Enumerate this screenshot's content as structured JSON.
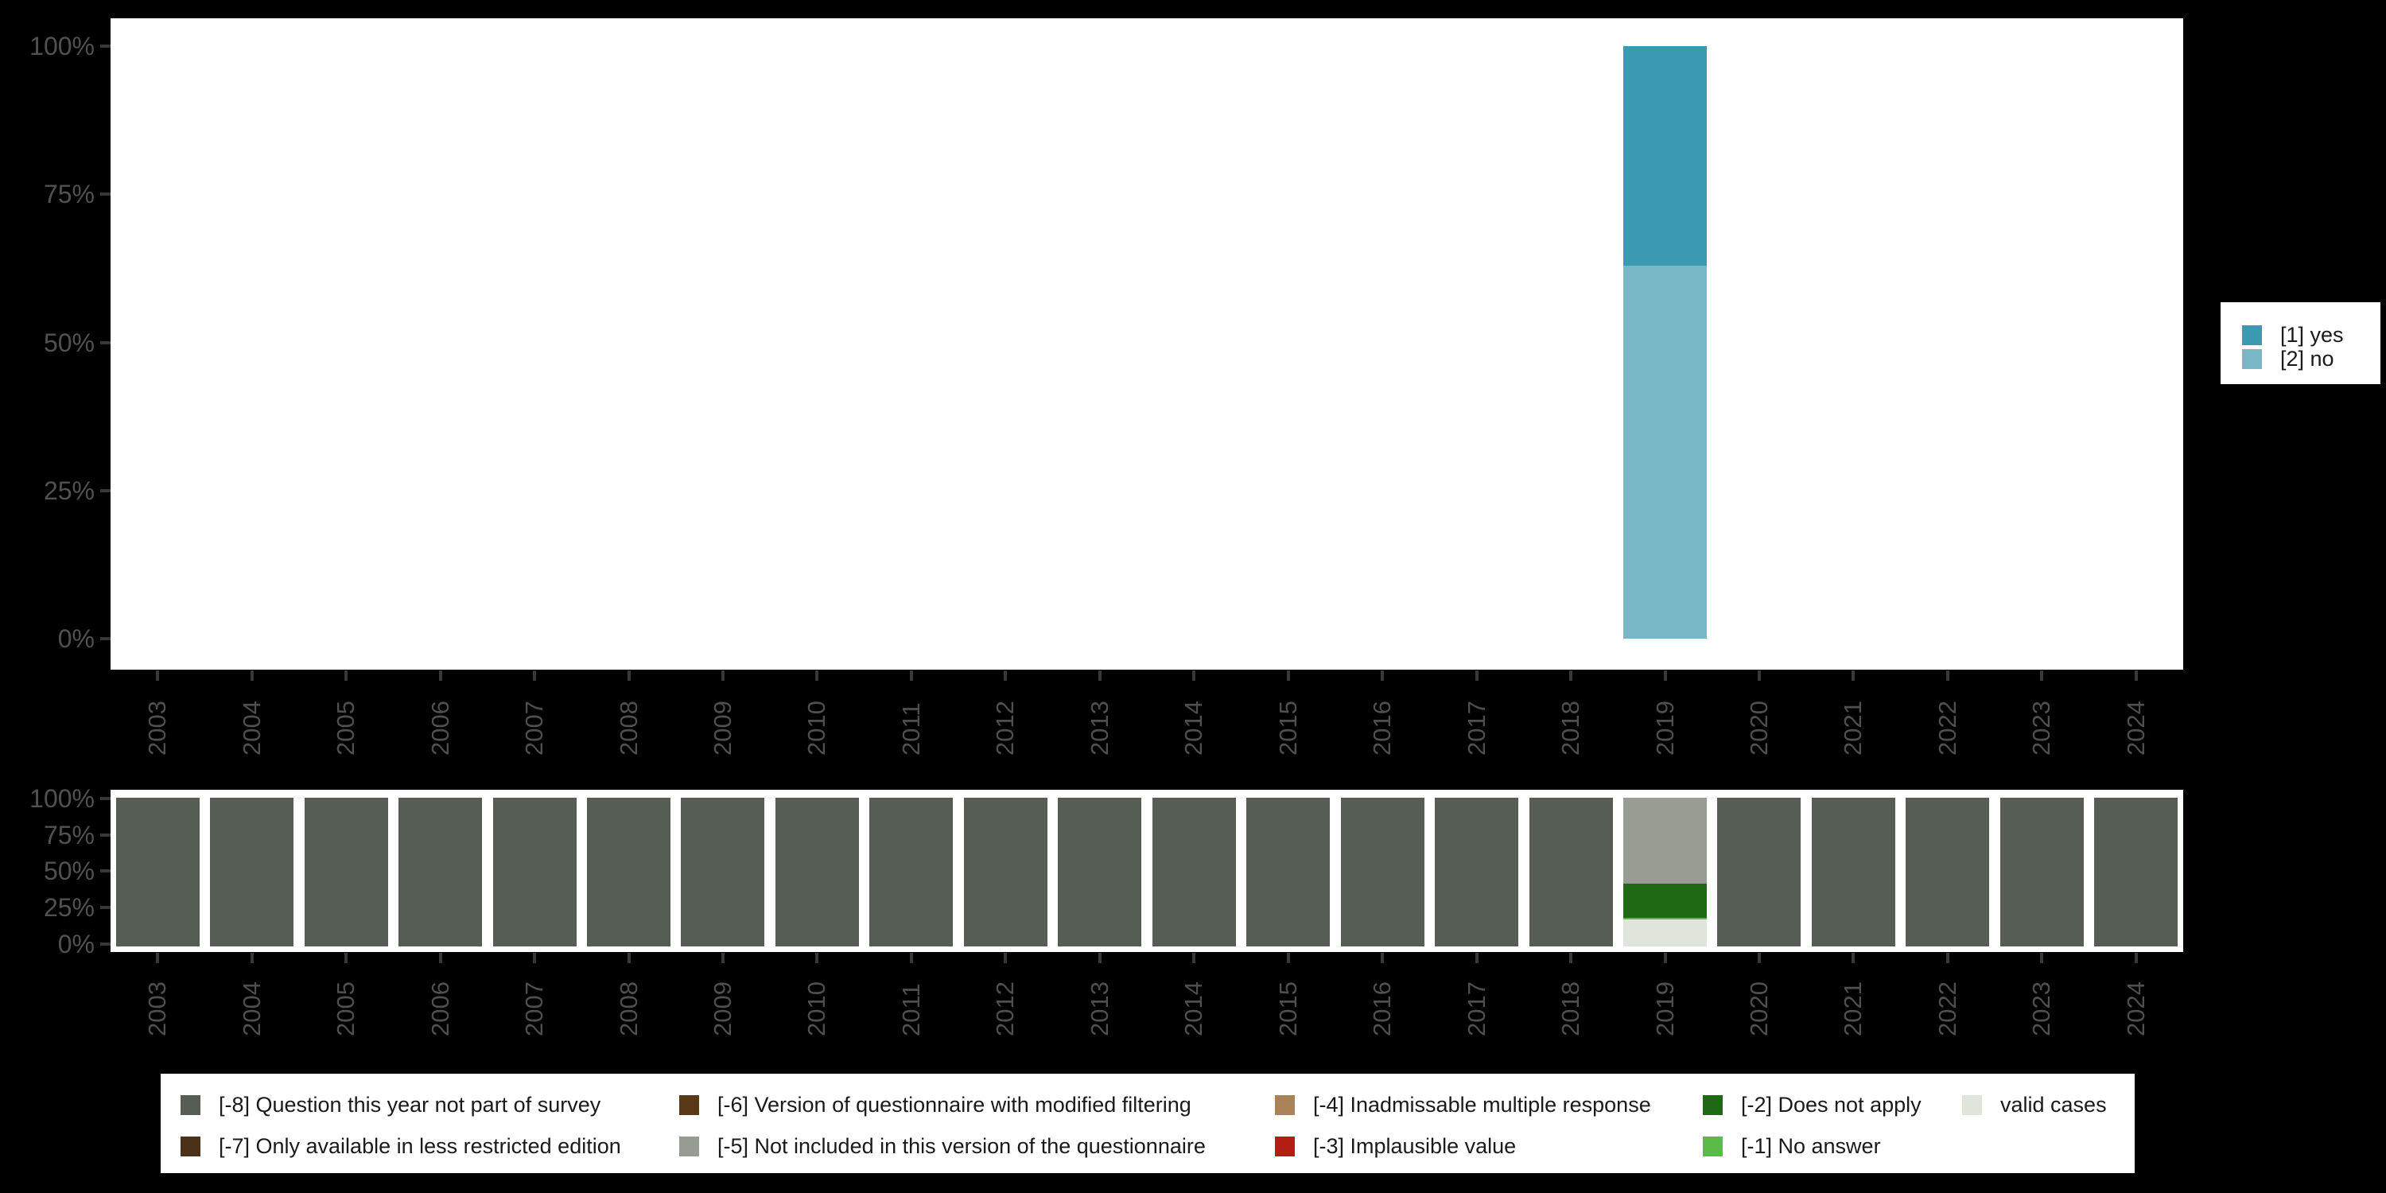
{
  "figure": {
    "background": "#000000",
    "panel_background": "#ffffff",
    "axis_text_color": "#515151",
    "tick_color": "#383838",
    "legend_text_color": "#1a1a1a"
  },
  "categories": [
    "2003",
    "2004",
    "2005",
    "2006",
    "2007",
    "2008",
    "2009",
    "2010",
    "2011",
    "2012",
    "2013",
    "2014",
    "2015",
    "2016",
    "2017",
    "2018",
    "2019",
    "2020",
    "2021",
    "2022",
    "2023",
    "2024"
  ],
  "chart_data": [
    {
      "type": "bar",
      "stacked": true,
      "unit": "percent",
      "title": "",
      "xlabel": "",
      "ylabel": "",
      "ylim": [
        0,
        100
      ],
      "grid": false,
      "legend_position": "right",
      "categories": [
        "2003",
        "2004",
        "2005",
        "2006",
        "2007",
        "2008",
        "2009",
        "2010",
        "2011",
        "2012",
        "2013",
        "2014",
        "2015",
        "2016",
        "2017",
        "2018",
        "2019",
        "2020",
        "2021",
        "2022",
        "2023",
        "2024"
      ],
      "y_tick_labels": [
        "100%",
        "75%",
        "50%",
        "25%",
        "0%"
      ],
      "series": [
        {
          "name": "[1] yes",
          "color": "#3B9AB2",
          "values": [
            0,
            0,
            0,
            0,
            0,
            0,
            0,
            0,
            0,
            0,
            0,
            0,
            0,
            0,
            0,
            0,
            37,
            0,
            0,
            0,
            0,
            0
          ]
        },
        {
          "name": "[2] no",
          "color": "#78B7C5",
          "values": [
            0,
            0,
            0,
            0,
            0,
            0,
            0,
            0,
            0,
            0,
            0,
            0,
            0,
            0,
            0,
            0,
            63,
            0,
            0,
            0,
            0,
            0
          ]
        }
      ]
    },
    {
      "type": "bar",
      "stacked": true,
      "unit": "percent",
      "title": "",
      "xlabel": "",
      "ylabel": "",
      "ylim": [
        0,
        100
      ],
      "grid": false,
      "legend_position": "bottom",
      "categories": [
        "2003",
        "2004",
        "2005",
        "2006",
        "2007",
        "2008",
        "2009",
        "2010",
        "2011",
        "2012",
        "2013",
        "2014",
        "2015",
        "2016",
        "2017",
        "2018",
        "2019",
        "2020",
        "2021",
        "2022",
        "2023",
        "2024"
      ],
      "y_tick_labels": [
        "100%",
        "75%",
        "50%",
        "25%",
        "0%"
      ],
      "series": [
        {
          "name": "[-8] Question this year not part of survey",
          "color": "#565D55",
          "values": [
            100,
            100,
            100,
            100,
            100,
            100,
            100,
            100,
            100,
            100,
            100,
            100,
            100,
            100,
            100,
            100,
            0,
            100,
            100,
            100,
            100,
            100
          ]
        },
        {
          "name": "[-5] Not included in this version of the questionnaire",
          "color": "#979D93",
          "values": [
            0,
            0,
            0,
            0,
            0,
            0,
            0,
            0,
            0,
            0,
            0,
            0,
            0,
            0,
            0,
            0,
            58,
            0,
            0,
            0,
            0,
            0
          ]
        },
        {
          "name": "[-2] Does not apply",
          "color": "#206914",
          "values": [
            0,
            0,
            0,
            0,
            0,
            0,
            0,
            0,
            0,
            0,
            0,
            0,
            0,
            0,
            0,
            0,
            22.5,
            0,
            0,
            0,
            0,
            0
          ]
        },
        {
          "name": "[-1] No answer",
          "color": "#5CBB46",
          "values": [
            0,
            0,
            0,
            0,
            0,
            0,
            0,
            0,
            0,
            0,
            0,
            0,
            0,
            0,
            0,
            0,
            1.5,
            0,
            0,
            0,
            0,
            0
          ]
        },
        {
          "name": "valid cases",
          "color": "#E0E5DC",
          "values": [
            0,
            0,
            0,
            0,
            0,
            0,
            0,
            0,
            0,
            0,
            0,
            0,
            0,
            0,
            0,
            0,
            18,
            0,
            0,
            0,
            0,
            0
          ]
        }
      ]
    }
  ],
  "legend_top": {
    "items": [
      {
        "label": "[1] yes",
        "color": "#3B9AB2"
      },
      {
        "label": "[2] no",
        "color": "#78B7C5"
      }
    ]
  },
  "legend_bottom": {
    "columns": [
      {
        "items": [
          {
            "label": "[-8] Question this year not part of survey",
            "color": "#565D55"
          },
          {
            "label": "[-7] Only available in less restricted edition",
            "color": "#4A3118"
          }
        ]
      },
      {
        "items": [
          {
            "label": "[-6] Version of questionnaire with modified filtering",
            "color": "#5A3A16"
          },
          {
            "label": "[-5] Not included in this version of the questionnaire",
            "color": "#969C92"
          }
        ]
      },
      {
        "items": [
          {
            "label": "[-4] Inadmissable multiple response",
            "color": "#A98255"
          },
          {
            "label": "[-3] Implausible value",
            "color": "#B21E14"
          }
        ]
      },
      {
        "items": [
          {
            "label": "[-2] Does not apply",
            "color": "#206914"
          },
          {
            "label": "[-1] No answer",
            "color": "#5CBB46"
          }
        ]
      },
      {
        "items": [
          {
            "label": "valid cases",
            "color": "#E0E5DC"
          }
        ]
      }
    ]
  }
}
